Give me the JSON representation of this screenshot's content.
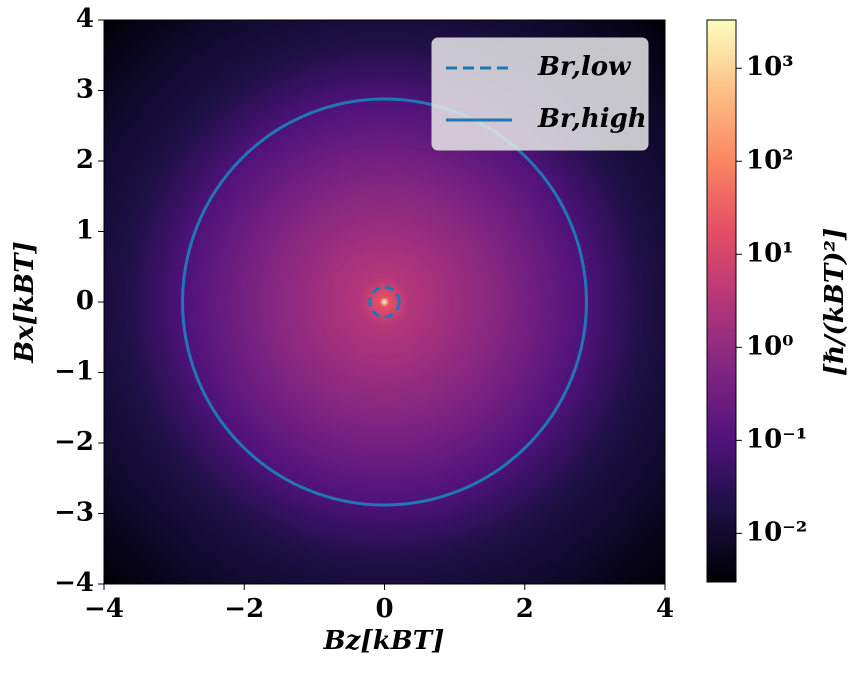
{
  "chart_data": {
    "type": "heatmap-circles",
    "x_label": "Bz[kBT]",
    "y_label": "Bx[kBT]",
    "colorbar_label": "[ℏ/(kBT)²]",
    "xlim": [
      -4,
      4
    ],
    "ylim": [
      -4,
      4
    ],
    "xticks": [
      {
        "value": -4,
        "label": "−4"
      },
      {
        "value": -2,
        "label": "−2"
      },
      0,
      2,
      4
    ],
    "yticks": [
      {
        "value": -4,
        "label": "−4"
      },
      {
        "value": -3,
        "label": "−3"
      },
      {
        "value": -2,
        "label": "−2"
      },
      {
        "value": -1,
        "label": "−1"
      },
      0,
      1,
      2,
      3,
      4
    ],
    "colormap": "magma",
    "zscale": "log",
    "zlim": [
      0.003,
      3300
    ],
    "zticks": [
      {
        "value": 0.01,
        "label": "10⁻²"
      },
      {
        "value": 0.1,
        "label": "10⁻¹"
      },
      {
        "value": 1,
        "label": "10⁰"
      },
      {
        "value": 10,
        "label": "10¹"
      },
      {
        "value": 100,
        "label": "10²"
      },
      {
        "value": 1000,
        "label": "10³"
      }
    ],
    "legend": "upper right",
    "series": [
      {
        "name": "Br,low",
        "color": "#1f77b4",
        "style": "dashed",
        "radius": 0.21
      },
      {
        "name": "Br,high",
        "color": "#1f77b4",
        "style": "solid",
        "radius": 2.88
      }
    ]
  }
}
